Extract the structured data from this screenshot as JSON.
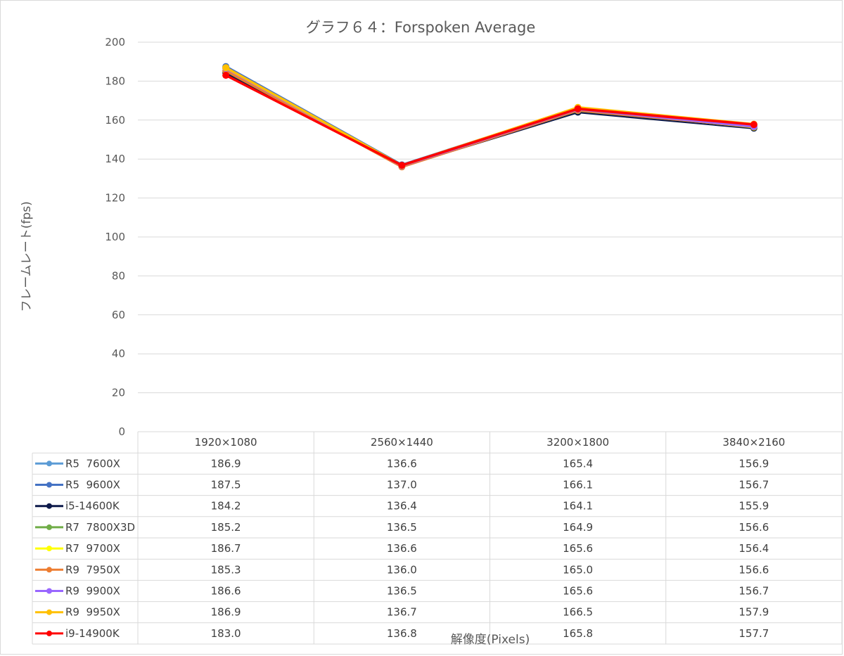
{
  "chart_data": {
    "type": "line",
    "title": "グラフ６４：Forspoken Average",
    "xlabel": "解像度(Pixels)",
    "ylabel": "フレームレート(fps)",
    "ylim": [
      0,
      200
    ],
    "yticks": [
      0,
      20,
      40,
      60,
      80,
      100,
      120,
      140,
      160,
      180,
      200
    ],
    "categories": [
      "1920×1080",
      "2560×1440",
      "3200×1800",
      "3840×2160"
    ],
    "grid": true,
    "legend": "data-table",
    "series": [
      {
        "name": "R5  7600X",
        "color": "#5b9bd5",
        "values": [
          186.9,
          136.6,
          165.4,
          156.9
        ],
        "labels": [
          "186.9",
          "136.6",
          "165.4",
          "156.9"
        ]
      },
      {
        "name": "R5  9600X",
        "color": "#4472c4",
        "values": [
          187.5,
          137.0,
          166.1,
          156.7
        ],
        "labels": [
          "187.5",
          "137.0",
          "166.1",
          "156.7"
        ]
      },
      {
        "name": "i5-14600K",
        "color": "#0d1a4a",
        "values": [
          184.2,
          136.4,
          164.1,
          155.9
        ],
        "labels": [
          "184.2",
          "136.4",
          "164.1",
          "155.9"
        ]
      },
      {
        "name": "R7  7800X3D",
        "color": "#70ad47",
        "values": [
          185.2,
          136.5,
          164.9,
          156.6
        ],
        "labels": [
          "185.2",
          "136.5",
          "164.9",
          "156.6"
        ]
      },
      {
        "name": "R7  9700X",
        "color": "#ffff00",
        "values": [
          186.7,
          136.6,
          165.6,
          156.4
        ],
        "labels": [
          "186.7",
          "136.6",
          "165.6",
          "156.4"
        ]
      },
      {
        "name": "R9  7950X",
        "color": "#ed7d31",
        "values": [
          185.3,
          136.0,
          165.0,
          156.6
        ],
        "labels": [
          "185.3",
          "136.0",
          "165.0",
          "156.6"
        ]
      },
      {
        "name": "R9  9900X",
        "color": "#9966ff",
        "values": [
          186.6,
          136.5,
          165.6,
          156.7
        ],
        "labels": [
          "186.6",
          "136.5",
          "165.6",
          "156.7"
        ]
      },
      {
        "name": "R9  9950X",
        "color": "#ffc000",
        "values": [
          186.9,
          136.7,
          166.5,
          157.9
        ],
        "labels": [
          "186.9",
          "136.7",
          "166.5",
          "157.9"
        ]
      },
      {
        "name": "i9-14900K",
        "color": "#ff0000",
        "values": [
          183.0,
          136.8,
          165.8,
          157.7
        ],
        "labels": [
          "183.0",
          "136.8",
          "165.8",
          "157.7"
        ]
      }
    ]
  }
}
